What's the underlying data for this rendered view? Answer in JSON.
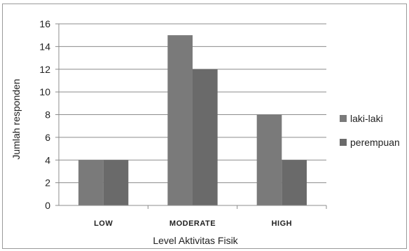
{
  "chart_data": {
    "type": "bar",
    "title": "",
    "xlabel": "Level Aktivitas Fisik",
    "ylabel": "Jumlah responden",
    "categories": [
      "LOW",
      "MODERATE",
      "HIGH"
    ],
    "series": [
      {
        "name": "laki-laki",
        "values": [
          4,
          15,
          8
        ],
        "color": "#7a7a7a"
      },
      {
        "name": "perempuan",
        "values": [
          4,
          12,
          4
        ],
        "color": "#6a6a6a"
      }
    ],
    "ylim": [
      0,
      16
    ],
    "yticks": [
      0,
      2,
      4,
      6,
      8,
      10,
      12,
      14,
      16
    ],
    "grid": true,
    "legend": "right"
  }
}
